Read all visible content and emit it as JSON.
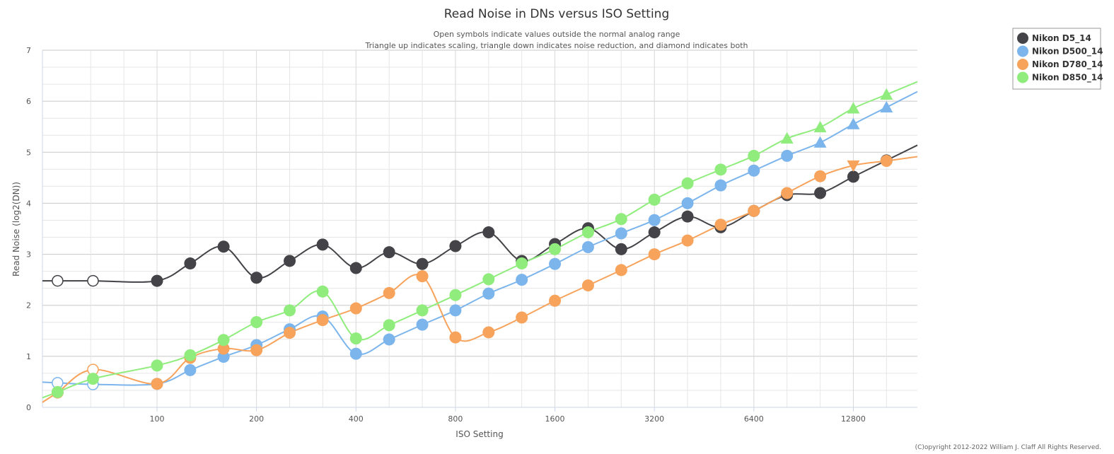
{
  "chart_data": {
    "type": "line",
    "title": "Read Noise in DNs versus ISO Setting",
    "subtitle_lines": [
      "Open symbols indicate values outside the normal analog range",
      "Triangle up indicates scaling, triangle down indicates noise reduction, and diamond indicates both"
    ],
    "xlabel": "ISO Setting",
    "ylabel": "Read Noise (log2(DN))",
    "x_scale": "log2",
    "xlim": [
      45,
      20000
    ],
    "ylim": [
      0,
      7
    ],
    "x_ticks": [
      {
        "value": 100,
        "label": "100"
      },
      {
        "value": 200,
        "label": "200"
      },
      {
        "value": 400,
        "label": "400"
      },
      {
        "value": 800,
        "label": "800"
      },
      {
        "value": 1600,
        "label": "1600"
      },
      {
        "value": 3200,
        "label": "3200"
      },
      {
        "value": 6400,
        "label": "6400"
      },
      {
        "value": 12800,
        "label": "12800"
      }
    ],
    "y_ticks": [
      0,
      1,
      2,
      3,
      4,
      5,
      6,
      7
    ],
    "grid": true,
    "legend": "top-right",
    "credit": "(C)opyright 2012-2022 William J. Claff All Rights Reserved.",
    "series": [
      {
        "name": "Nikon D5_14",
        "color": "#434348",
        "points": [
          {
            "x": 50,
            "y": 2.48,
            "marker": "open"
          },
          {
            "x": 64,
            "y": 2.48,
            "marker": "open"
          },
          {
            "x": 100,
            "y": 2.48,
            "marker": "circle"
          },
          {
            "x": 126,
            "y": 2.82,
            "marker": "circle"
          },
          {
            "x": 159,
            "y": 3.15,
            "marker": "circle"
          },
          {
            "x": 200,
            "y": 2.54,
            "marker": "circle"
          },
          {
            "x": 252,
            "y": 2.87,
            "marker": "circle"
          },
          {
            "x": 317,
            "y": 3.19,
            "marker": "circle"
          },
          {
            "x": 400,
            "y": 2.73,
            "marker": "circle"
          },
          {
            "x": 504,
            "y": 3.04,
            "marker": "circle"
          },
          {
            "x": 635,
            "y": 2.81,
            "marker": "circle"
          },
          {
            "x": 800,
            "y": 3.16,
            "marker": "circle"
          },
          {
            "x": 1008,
            "y": 3.43,
            "marker": "circle"
          },
          {
            "x": 1270,
            "y": 2.87,
            "marker": "circle"
          },
          {
            "x": 1600,
            "y": 3.2,
            "marker": "circle"
          },
          {
            "x": 2016,
            "y": 3.51,
            "marker": "circle"
          },
          {
            "x": 2540,
            "y": 3.1,
            "marker": "circle"
          },
          {
            "x": 3200,
            "y": 3.43,
            "marker": "circle"
          },
          {
            "x": 4032,
            "y": 3.74,
            "marker": "circle"
          },
          {
            "x": 5080,
            "y": 3.53,
            "marker": "circle"
          },
          {
            "x": 6400,
            "y": 3.85,
            "marker": "circle"
          },
          {
            "x": 8063,
            "y": 4.16,
            "marker": "circle"
          },
          {
            "x": 10159,
            "y": 4.2,
            "marker": "circle"
          },
          {
            "x": 12800,
            "y": 4.52,
            "marker": "circle"
          },
          {
            "x": 16127,
            "y": 4.84,
            "marker": "circle"
          }
        ]
      },
      {
        "name": "Nikon D500_14",
        "color": "#7cb5ec",
        "points": [
          {
            "x": 50,
            "y": 0.48,
            "marker": "open"
          },
          {
            "x": 64,
            "y": 0.45,
            "marker": "open"
          },
          {
            "x": 100,
            "y": 0.46,
            "marker": "circle"
          },
          {
            "x": 126,
            "y": 0.73,
            "marker": "circle"
          },
          {
            "x": 159,
            "y": 0.99,
            "marker": "circle"
          },
          {
            "x": 200,
            "y": 1.22,
            "marker": "circle"
          },
          {
            "x": 252,
            "y": 1.53,
            "marker": "circle"
          },
          {
            "x": 317,
            "y": 1.78,
            "marker": "circle"
          },
          {
            "x": 400,
            "y": 1.05,
            "marker": "circle"
          },
          {
            "x": 504,
            "y": 1.33,
            "marker": "circle"
          },
          {
            "x": 635,
            "y": 1.62,
            "marker": "circle"
          },
          {
            "x": 800,
            "y": 1.9,
            "marker": "circle"
          },
          {
            "x": 1008,
            "y": 2.23,
            "marker": "circle"
          },
          {
            "x": 1270,
            "y": 2.5,
            "marker": "circle"
          },
          {
            "x": 1600,
            "y": 2.81,
            "marker": "circle"
          },
          {
            "x": 2016,
            "y": 3.14,
            "marker": "circle"
          },
          {
            "x": 2540,
            "y": 3.41,
            "marker": "circle"
          },
          {
            "x": 3200,
            "y": 3.67,
            "marker": "circle"
          },
          {
            "x": 4032,
            "y": 4.0,
            "marker": "circle"
          },
          {
            "x": 5080,
            "y": 4.35,
            "marker": "circle"
          },
          {
            "x": 6400,
            "y": 4.64,
            "marker": "circle"
          },
          {
            "x": 8063,
            "y": 4.93,
            "marker": "circle"
          },
          {
            "x": 10159,
            "y": 5.19,
            "marker": "triangle-up"
          },
          {
            "x": 12800,
            "y": 5.55,
            "marker": "triangle-up"
          },
          {
            "x": 16127,
            "y": 5.88,
            "marker": "triangle-up"
          }
        ]
      },
      {
        "name": "Nikon D780_14",
        "color": "#f7a35c",
        "points": [
          {
            "x": 50,
            "y": 0.29,
            "marker": "circle"
          },
          {
            "x": 64,
            "y": 0.74,
            "marker": "open"
          },
          {
            "x": 100,
            "y": 0.46,
            "marker": "circle"
          },
          {
            "x": 126,
            "y": 0.97,
            "marker": "circle"
          },
          {
            "x": 159,
            "y": 1.15,
            "marker": "circle"
          },
          {
            "x": 200,
            "y": 1.12,
            "marker": "circle"
          },
          {
            "x": 252,
            "y": 1.46,
            "marker": "circle"
          },
          {
            "x": 317,
            "y": 1.71,
            "marker": "circle"
          },
          {
            "x": 400,
            "y": 1.94,
            "marker": "circle"
          },
          {
            "x": 504,
            "y": 2.24,
            "marker": "circle"
          },
          {
            "x": 635,
            "y": 2.57,
            "marker": "circle"
          },
          {
            "x": 800,
            "y": 1.37,
            "marker": "circle"
          },
          {
            "x": 1008,
            "y": 1.47,
            "marker": "circle"
          },
          {
            "x": 1270,
            "y": 1.76,
            "marker": "circle"
          },
          {
            "x": 1600,
            "y": 2.09,
            "marker": "circle"
          },
          {
            "x": 2016,
            "y": 2.39,
            "marker": "circle"
          },
          {
            "x": 2540,
            "y": 2.69,
            "marker": "circle"
          },
          {
            "x": 3200,
            "y": 3.0,
            "marker": "circle"
          },
          {
            "x": 4032,
            "y": 3.27,
            "marker": "circle"
          },
          {
            "x": 5080,
            "y": 3.58,
            "marker": "circle"
          },
          {
            "x": 6400,
            "y": 3.85,
            "marker": "circle"
          },
          {
            "x": 8063,
            "y": 4.2,
            "marker": "circle"
          },
          {
            "x": 10159,
            "y": 4.53,
            "marker": "circle"
          },
          {
            "x": 12800,
            "y": 4.74,
            "marker": "triangle-down"
          },
          {
            "x": 16127,
            "y": 4.83,
            "marker": "circle"
          }
        ]
      },
      {
        "name": "Nikon D850_14",
        "color": "#90ed7d",
        "points": [
          {
            "x": 50,
            "y": 0.3,
            "marker": "circle"
          },
          {
            "x": 64,
            "y": 0.56,
            "marker": "circle"
          },
          {
            "x": 100,
            "y": 0.82,
            "marker": "circle"
          },
          {
            "x": 126,
            "y": 1.02,
            "marker": "circle"
          },
          {
            "x": 159,
            "y": 1.32,
            "marker": "circle"
          },
          {
            "x": 200,
            "y": 1.67,
            "marker": "circle"
          },
          {
            "x": 252,
            "y": 1.9,
            "marker": "circle"
          },
          {
            "x": 317,
            "y": 2.27,
            "marker": "circle"
          },
          {
            "x": 400,
            "y": 1.35,
            "marker": "circle"
          },
          {
            "x": 504,
            "y": 1.61,
            "marker": "circle"
          },
          {
            "x": 635,
            "y": 1.9,
            "marker": "circle"
          },
          {
            "x": 800,
            "y": 2.2,
            "marker": "circle"
          },
          {
            "x": 1008,
            "y": 2.51,
            "marker": "circle"
          },
          {
            "x": 1270,
            "y": 2.82,
            "marker": "circle"
          },
          {
            "x": 1600,
            "y": 3.1,
            "marker": "circle"
          },
          {
            "x": 2016,
            "y": 3.43,
            "marker": "circle"
          },
          {
            "x": 2540,
            "y": 3.69,
            "marker": "circle"
          },
          {
            "x": 3200,
            "y": 4.07,
            "marker": "circle"
          },
          {
            "x": 4032,
            "y": 4.39,
            "marker": "circle"
          },
          {
            "x": 5080,
            "y": 4.66,
            "marker": "circle"
          },
          {
            "x": 6400,
            "y": 4.93,
            "marker": "circle"
          },
          {
            "x": 8063,
            "y": 5.27,
            "marker": "triangle-up"
          },
          {
            "x": 10159,
            "y": 5.49,
            "marker": "triangle-up"
          },
          {
            "x": 12800,
            "y": 5.86,
            "marker": "triangle-up"
          },
          {
            "x": 16127,
            "y": 6.13,
            "marker": "triangle-up"
          }
        ]
      }
    ]
  }
}
